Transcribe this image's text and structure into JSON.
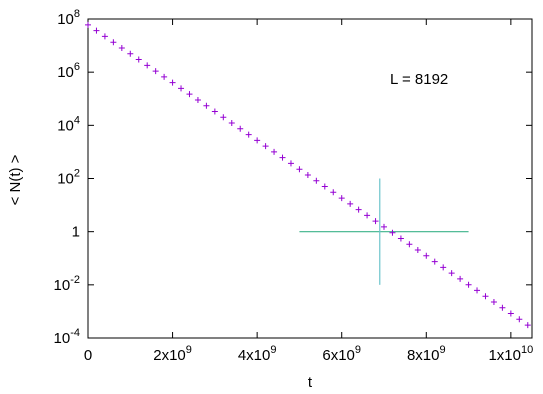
{
  "chart_data": {
    "type": "scatter",
    "xlabel": "t",
    "ylabel": "< N(t) >",
    "annotation": "L = 8192",
    "log_y": true,
    "color": "#9400d3",
    "x": [
      0,
      200000000.0,
      400000000.0,
      600000000.0,
      800000000.0,
      1000000000.0,
      1200000000.0,
      1400000000.0,
      1600000000.0,
      1800000000.0,
      2000000000.0,
      2200000000.0,
      2400000000.0,
      2600000000.0,
      2800000000.0,
      3000000000.0,
      3200000000.0,
      3400000000.0,
      3600000000.0,
      3800000000.0,
      4000000000.0,
      4200000000.0,
      4400000000.0,
      4600000000.0,
      4800000000.0,
      5000000000.0,
      5200000000.0,
      5400000000.0,
      5600000000.0,
      5800000000.0,
      6000000000.0,
      6200000000.0,
      6400000000.0,
      6600000000.0,
      6800000000.0,
      7000000000.0,
      7200000000.0,
      7400000000.0,
      7600000000.0,
      7800000000.0,
      8000000000.0,
      8200000000.0,
      8400000000.0,
      8600000000.0,
      8800000000.0,
      9000000000.0,
      9200000000.0,
      9400000000.0,
      9600000000.0,
      9800000000.0,
      10000000000.0,
      10200000000.0,
      10400000000.0
    ],
    "values": [
      60000000.0,
      36400000.0,
      22100000.0,
      13400000.0,
      8120000.0,
      4920000.0,
      2990000.0,
      1810000.0,
      1100000.0,
      666000.0,
      404000.0,
      245000.0,
      149000.0,
      90200.0,
      54700.0,
      33200.0,
      20100.0,
      12200.0,
      7400.0,
      4490.0,
      2720.0,
      1650.0,
      1000.0,
      608,
      369,
      224,
      136,
      82.3,
      49.9,
      30.3,
      18.3,
      11.1,
      6.75,
      4.09,
      2.48,
      1.51,
      0.914,
      0.554,
      0.336,
      0.204,
      0.124,
      0.075,
      0.0455,
      0.0276,
      0.0167,
      0.0101,
      0.00616,
      0.00373,
      0.00226,
      0.00137,
      0.000833,
      0.000505,
      0.000306
    ],
    "lines": [
      {
        "color": "#3cb38a",
        "x": [
          5000000000.0,
          9000000000.0
        ],
        "y": [
          1,
          1
        ]
      },
      {
        "color": "#6cc4cc",
        "x": [
          6900000000.0,
          6900000000.0
        ],
        "y": [
          0.01,
          100
        ]
      }
    ],
    "xlim": [
      0,
      10500000000.0
    ],
    "ylim": [
      0.0001,
      100000000.0
    ],
    "xticks": [
      0,
      {
        "value": 2000000000.0,
        "label": "2x109"
      },
      {
        "value": 4000000000.0,
        "label": "4x109"
      },
      {
        "value": 6000000000.0,
        "label": "6x109"
      },
      {
        "value": 8000000000.0,
        "label": "8x109"
      },
      {
        "value": 10000000000.0,
        "label": "1x1010"
      }
    ],
    "yticks": [
      {
        "value": 0.0001,
        "label": "10-4"
      },
      {
        "value": 0.01,
        "label": "10-2"
      },
      1,
      {
        "value": 100,
        "label": "102"
      },
      {
        "value": 10000,
        "label": "104"
      },
      {
        "value": 1000000,
        "label": "106"
      },
      {
        "value": 100000000,
        "label": "108"
      }
    ]
  }
}
